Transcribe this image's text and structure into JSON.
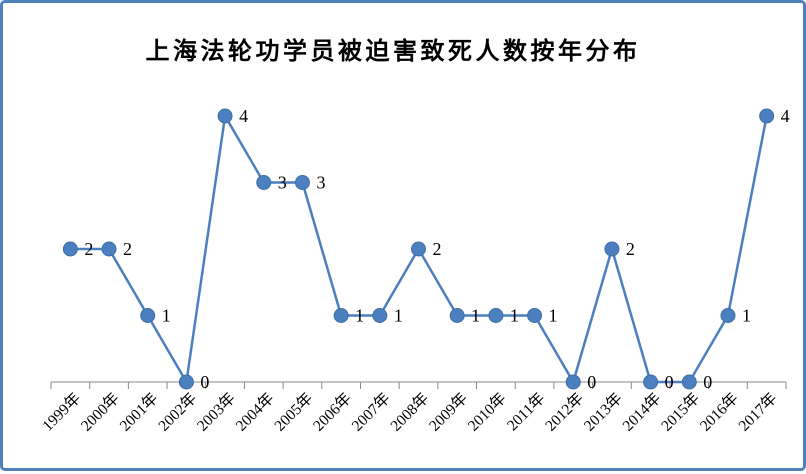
{
  "frame": {
    "border_color": "#4f81bd",
    "background_color": "#ffffff"
  },
  "chart_data": {
    "type": "line",
    "title": "上海法轮功学员被迫害致死人数按年分布",
    "categories": [
      "1999年",
      "2000年",
      "2001年",
      "2002年",
      "2003年",
      "2004年",
      "2005年",
      "2006年",
      "2007年",
      "2008年",
      "2009年",
      "2010年",
      "2011年",
      "2012年",
      "2013年",
      "2014年",
      "2015年",
      "2016年",
      "2017年"
    ],
    "values": [
      2,
      2,
      1,
      0,
      4,
      3,
      3,
      1,
      1,
      2,
      1,
      1,
      1,
      0,
      2,
      0,
      0,
      1,
      4
    ],
    "xlabel": "",
    "ylabel": "",
    "ylim": [
      0,
      4
    ],
    "grid": false,
    "legend": false,
    "data_label_position": "right",
    "x_tick_rotation": 45,
    "line_color": "#4c7fbf",
    "marker": "circle",
    "marker_color": "#4c7fbf",
    "marker_stroke_color": "#3d6ea5",
    "axis_color": "#898989",
    "label_color": "#000000"
  }
}
